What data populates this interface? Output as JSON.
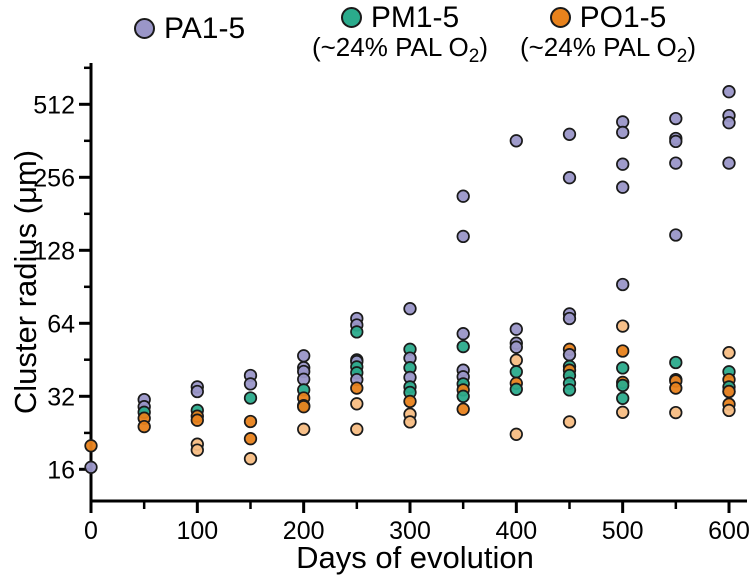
{
  "legend": [
    {
      "label": "PA1-5",
      "color": "#9A96C8"
    },
    {
      "label": "PM1-5",
      "color": "#2BAB8C",
      "sublabel": {
        "pre": "(~24% PAL O",
        "sub": "2",
        "post": ")"
      }
    },
    {
      "label": "PO1-5",
      "color": "#E8821C",
      "sublabel": {
        "pre": "(~24% PAL O",
        "sub": "2",
        "post": ")"
      }
    }
  ],
  "chart_data": {
    "type": "scatter",
    "xlabel": "Days of evolution",
    "ylabel": "Cluster radius (μm)",
    "x_ticks": [
      0,
      100,
      200,
      300,
      400,
      500,
      600
    ],
    "x_minor_ticks": [
      50,
      150,
      250,
      350,
      450,
      550
    ],
    "y_scale": "log2",
    "y_ticks": [
      16,
      32,
      64,
      128,
      256,
      512
    ],
    "y_minor_ticks": [
      22.6,
      45.3,
      90.5,
      181,
      362,
      724
    ],
    "xlim": [
      0,
      617
    ],
    "ylim": [
      14,
      780
    ],
    "grid": false,
    "legend_position": "top",
    "series": [
      {
        "name": "PA1-5",
        "color": "#9A96C8",
        "points": [
          [
            0,
            16.3
          ],
          [
            50,
            31
          ],
          [
            50,
            29
          ],
          [
            100,
            35
          ],
          [
            100,
            33.5
          ],
          [
            150,
            39
          ],
          [
            150,
            36
          ],
          [
            200,
            47
          ],
          [
            200,
            42
          ],
          [
            200,
            40.5
          ],
          [
            200,
            37.6
          ],
          [
            250,
            67
          ],
          [
            250,
            63
          ],
          [
            250,
            44.5
          ],
          [
            250,
            37.5
          ],
          [
            300,
            73.5
          ],
          [
            300,
            46
          ],
          [
            300,
            38.3
          ],
          [
            350,
            214
          ],
          [
            350,
            146
          ],
          [
            350,
            58
          ],
          [
            350,
            41
          ],
          [
            350,
            38.5
          ],
          [
            400,
            362
          ],
          [
            400,
            60.5
          ],
          [
            400,
            53
          ],
          [
            400,
            51
          ],
          [
            450,
            385
          ],
          [
            450,
            255
          ],
          [
            450,
            70
          ],
          [
            450,
            67
          ],
          [
            450,
            47.5
          ],
          [
            500,
            433
          ],
          [
            500,
            392
          ],
          [
            500,
            290
          ],
          [
            500,
            233
          ],
          [
            500,
            92.5
          ],
          [
            550,
            447
          ],
          [
            550,
            370
          ],
          [
            550,
            360
          ],
          [
            550,
            293
          ],
          [
            550,
            148
          ],
          [
            550,
            37.5
          ],
          [
            600,
            577
          ],
          [
            600,
            460
          ],
          [
            600,
            430
          ],
          [
            600,
            293
          ],
          [
            600,
            33.5
          ]
        ]
      },
      {
        "name": "PM1-5",
        "color": "#2BAB8C",
        "points": [
          [
            50,
            27.5
          ],
          [
            100,
            28
          ],
          [
            150,
            31.5
          ],
          [
            200,
            34
          ],
          [
            200,
            29.3
          ],
          [
            250,
            59
          ],
          [
            250,
            45.2
          ],
          [
            250,
            42.3
          ],
          [
            250,
            40
          ],
          [
            300,
            50
          ],
          [
            300,
            42
          ],
          [
            300,
            35
          ],
          [
            300,
            33.2
          ],
          [
            350,
            51.3
          ],
          [
            350,
            36
          ],
          [
            350,
            32
          ],
          [
            400,
            40.4
          ],
          [
            400,
            34.2
          ],
          [
            450,
            42.5
          ],
          [
            450,
            39
          ],
          [
            450,
            36.2
          ],
          [
            450,
            34
          ],
          [
            500,
            41.9
          ],
          [
            500,
            35.5
          ],
          [
            500,
            31.4
          ],
          [
            550,
            44.1
          ],
          [
            600,
            40.4
          ],
          [
            600,
            35
          ]
        ]
      },
      {
        "name": "PO1-5",
        "color": "#E8821C",
        "points": [
          [
            0,
            20
          ],
          [
            50,
            26
          ],
          [
            50,
            24
          ],
          [
            100,
            26.5
          ],
          [
            100,
            25.5
          ],
          [
            150,
            25.2
          ],
          [
            150,
            21.4
          ],
          [
            200,
            31.5
          ],
          [
            200,
            29
          ],
          [
            250,
            34.6
          ],
          [
            300,
            30.5
          ],
          [
            350,
            34
          ],
          [
            350,
            28.3
          ],
          [
            400,
            36.2
          ],
          [
            450,
            50
          ],
          [
            450,
            41
          ],
          [
            500,
            49.2
          ],
          [
            500,
            36.5
          ],
          [
            550,
            37
          ],
          [
            550,
            34.6
          ],
          [
            600,
            37.5
          ],
          [
            600,
            33.5
          ],
          [
            600,
            29.7
          ]
        ]
      },
      {
        "name": "PO1-5-light",
        "color": "#F7BD83",
        "points": [
          [
            100,
            20.3
          ],
          [
            100,
            19.2
          ],
          [
            150,
            17.7
          ],
          [
            200,
            23.4
          ],
          [
            250,
            29.8
          ],
          [
            250,
            23.4
          ],
          [
            300,
            27
          ],
          [
            300,
            25.1
          ],
          [
            400,
            45.1
          ],
          [
            400,
            22.3
          ],
          [
            450,
            25.1
          ],
          [
            500,
            62.3
          ],
          [
            500,
            27.5
          ],
          [
            550,
            27.4
          ],
          [
            600,
            48.4
          ],
          [
            600,
            28
          ]
        ]
      }
    ]
  }
}
